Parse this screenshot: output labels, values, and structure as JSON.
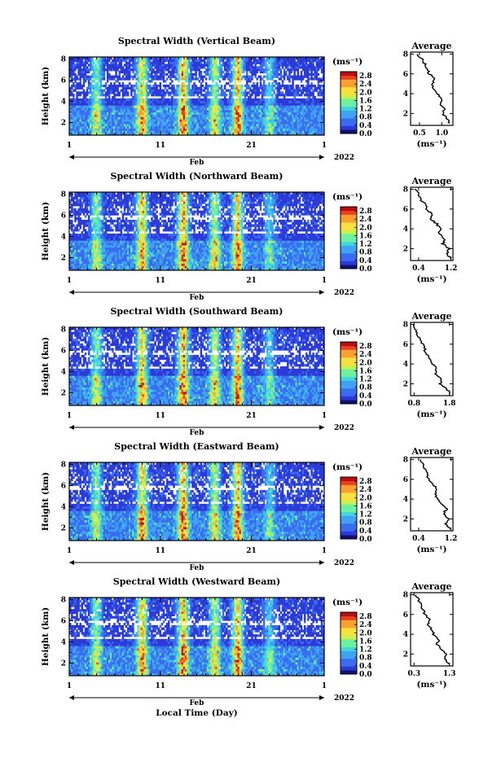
{
  "chart_data": [
    {
      "type": "heatmap",
      "title": "Spectral Width (Vertical Beam)",
      "ylabel": "Height (km)",
      "xlabel": "",
      "x_ticks": [
        "1",
        "11",
        "21",
        "1"
      ],
      "x_range": [
        1,
        29
      ],
      "month_label": "Feb",
      "year_label": "2022",
      "y_ticks": [
        "2",
        "4",
        "6",
        "8"
      ],
      "ylim": [
        0.8,
        8.2
      ],
      "colorbar": {
        "unit": "(ms⁻¹)",
        "ticks": [
          "0.0",
          "0.4",
          "0.8",
          "1.2",
          "1.6",
          "2.0",
          "2.4",
          "2.8"
        ],
        "range": [
          0,
          3.0
        ]
      },
      "average": {
        "title": "Average",
        "xlabel": "(ms⁻¹)",
        "x_ticks": [
          "0.5",
          "1.0"
        ],
        "xlim": [
          0.3,
          1.25
        ],
        "y_ticks": [
          "2",
          "4",
          "6",
          "8"
        ],
        "ylim": [
          0.8,
          8.2
        ],
        "heights": [
          1.0,
          1.5,
          2.0,
          2.5,
          3.0,
          3.5,
          4.0,
          4.5,
          5.0,
          5.5,
          6.0,
          6.5,
          7.0,
          7.5,
          8.0
        ],
        "values": [
          1.18,
          1.1,
          1.02,
          1.05,
          0.95,
          1.0,
          0.9,
          0.82,
          0.78,
          0.85,
          0.72,
          0.68,
          0.62,
          0.55,
          0.45
        ]
      }
    },
    {
      "type": "heatmap",
      "title": "Spectral Width (Northward Beam)",
      "ylabel": "Height (km)",
      "xlabel": "",
      "x_ticks": [
        "1",
        "11",
        "21",
        "1"
      ],
      "x_range": [
        1,
        29
      ],
      "month_label": "Feb",
      "year_label": "2022",
      "y_ticks": [
        "2",
        "4",
        "6",
        "8"
      ],
      "ylim": [
        0.8,
        8.2
      ],
      "colorbar": {
        "unit": "(ms⁻¹)",
        "ticks": [
          "0.0",
          "0.4",
          "0.8",
          "1.2",
          "1.6",
          "2.0",
          "2.4",
          "2.8"
        ],
        "range": [
          0,
          3.0
        ]
      },
      "average": {
        "title": "Average",
        "xlabel": "(ms⁻¹)",
        "x_ticks": [
          "0.4",
          "1.2"
        ],
        "xlim": [
          0.2,
          1.25
        ],
        "y_ticks": [
          "2",
          "4",
          "6",
          "8"
        ],
        "ylim": [
          0.8,
          8.2
        ],
        "heights": [
          1.0,
          1.5,
          2.0,
          2.5,
          3.0,
          3.5,
          4.0,
          4.5,
          5.0,
          5.5,
          6.0,
          6.5,
          7.0,
          7.5,
          8.0
        ],
        "values": [
          1.2,
          1.1,
          1.15,
          1.0,
          1.05,
          0.9,
          0.95,
          0.85,
          0.7,
          0.72,
          0.6,
          0.55,
          0.45,
          0.4,
          0.3
        ]
      }
    },
    {
      "type": "heatmap",
      "title": "Spectral Width (Southward Beam)",
      "ylabel": "Height (km)",
      "xlabel": "",
      "x_ticks": [
        "1",
        "11",
        "21",
        "1"
      ],
      "x_range": [
        1,
        29
      ],
      "month_label": "Feb",
      "year_label": "2022",
      "y_ticks": [
        "2",
        "4",
        "6",
        "8"
      ],
      "ylim": [
        0.8,
        8.2
      ],
      "colorbar": {
        "unit": "(ms⁻¹)",
        "ticks": [
          "0.0",
          "0.4",
          "0.8",
          "1.2",
          "1.6",
          "2.0",
          "2.4",
          "2.8"
        ],
        "range": [
          0,
          3.0
        ]
      },
      "average": {
        "title": "Average",
        "xlabel": "(ms⁻¹)",
        "x_ticks": [
          "0.8",
          "1.8"
        ],
        "xlim": [
          0.7,
          1.9
        ],
        "y_ticks": [
          "2",
          "4",
          "6",
          "8"
        ],
        "ylim": [
          0.8,
          8.2
        ],
        "heights": [
          1.0,
          1.5,
          2.0,
          2.5,
          3.0,
          3.5,
          4.0,
          4.5,
          5.0,
          5.5,
          6.0,
          6.5,
          7.0,
          7.5,
          8.0
        ],
        "values": [
          1.85,
          1.7,
          1.55,
          1.6,
          1.4,
          1.45,
          1.3,
          1.25,
          1.15,
          1.1,
          1.05,
          0.95,
          0.9,
          0.85,
          0.78
        ]
      }
    },
    {
      "type": "heatmap",
      "title": "Spectral Width (Eastward Beam)",
      "ylabel": "Height (km)",
      "xlabel": "",
      "x_ticks": [
        "1",
        "11",
        "21",
        "1"
      ],
      "x_range": [
        1,
        29
      ],
      "month_label": "Feb",
      "year_label": "2022",
      "y_ticks": [
        "2",
        "4",
        "6",
        "8"
      ],
      "ylim": [
        0.8,
        8.2
      ],
      "colorbar": {
        "unit": "(ms⁻¹)",
        "ticks": [
          "0.0",
          "0.4",
          "0.8",
          "1.2",
          "1.6",
          "2.0",
          "2.4",
          "2.8"
        ],
        "range": [
          0,
          3.0
        ]
      },
      "average": {
        "title": "Average",
        "xlabel": "(ms⁻¹)",
        "x_ticks": [
          "0.4",
          "1.2"
        ],
        "xlim": [
          0.2,
          1.25
        ],
        "y_ticks": [
          "2",
          "4",
          "6",
          "8"
        ],
        "ylim": [
          0.8,
          8.2
        ],
        "heights": [
          1.0,
          1.5,
          2.0,
          2.5,
          3.0,
          3.5,
          4.0,
          4.5,
          5.0,
          5.5,
          6.0,
          6.5,
          7.0,
          7.5,
          8.0
        ],
        "values": [
          1.2,
          1.05,
          1.15,
          1.0,
          1.1,
          0.95,
          0.9,
          0.8,
          0.85,
          0.75,
          0.65,
          0.62,
          0.55,
          0.5,
          0.45
        ]
      }
    },
    {
      "type": "heatmap",
      "title": "Spectral Width (Westward Beam)",
      "ylabel": "Height (km)",
      "xlabel": "Local Time (Day)",
      "x_ticks": [
        "1",
        "11",
        "21",
        "1"
      ],
      "x_range": [
        1,
        29
      ],
      "month_label": "Feb",
      "year_label": "2022",
      "y_ticks": [
        "2",
        "4",
        "6",
        "8"
      ],
      "ylim": [
        0.8,
        8.2
      ],
      "colorbar": {
        "unit": "(ms⁻¹)",
        "ticks": [
          "0.0",
          "0.4",
          "0.8",
          "1.2",
          "1.6",
          "2.0",
          "2.4",
          "2.8"
        ],
        "range": [
          0,
          3.0
        ]
      },
      "average": {
        "title": "Average",
        "xlabel": "(ms⁻¹)",
        "x_ticks": [
          "0.3",
          "1.3"
        ],
        "xlim": [
          0.2,
          1.4
        ],
        "y_ticks": [
          "2",
          "4",
          "6",
          "8"
        ],
        "ylim": [
          0.8,
          8.2
        ],
        "heights": [
          1.0,
          1.5,
          2.0,
          2.5,
          3.0,
          3.5,
          4.0,
          4.5,
          5.0,
          5.5,
          6.0,
          6.5,
          7.0,
          7.5,
          8.0
        ],
        "values": [
          1.3,
          1.15,
          1.2,
          1.05,
          0.95,
          1.0,
          0.85,
          0.8,
          0.7,
          0.72,
          0.6,
          0.55,
          0.48,
          0.42,
          0.35
        ]
      }
    }
  ],
  "colors": {
    "stops": [
      "#10106e",
      "#2c3ad8",
      "#3a6cf0",
      "#3fa3f2",
      "#42d6e0",
      "#6ef0a0",
      "#c8f050",
      "#f8e040",
      "#f8a030",
      "#e84020",
      "#b81010"
    ]
  }
}
